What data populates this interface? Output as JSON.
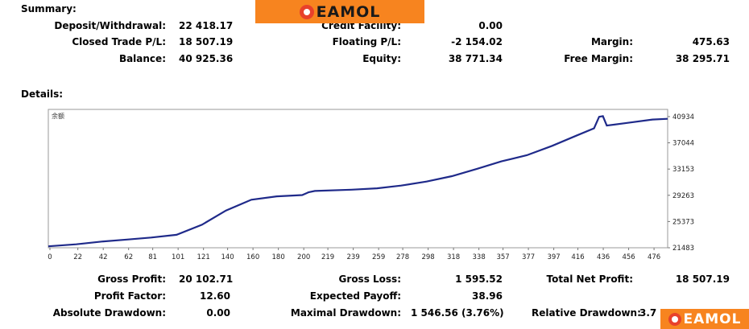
{
  "banner": {
    "brand": "EAMOL"
  },
  "corner_badge": {
    "brand": "EAMOL"
  },
  "summary": {
    "heading": "Summary:",
    "deposit_label": "Deposit/Withdrawal:",
    "deposit_value": "22 418.17",
    "credit_label": "Credit Facility:",
    "credit_value": "0.00",
    "closed_pl_label": "Closed Trade P/L:",
    "closed_pl_value": "18 507.19",
    "floating_pl_label": "Floating P/L:",
    "floating_pl_value": "-2 154.02",
    "margin_label": "Margin:",
    "margin_value": "475.63",
    "balance_label": "Balance:",
    "balance_value": "40 925.36",
    "equity_label": "Equity:",
    "equity_value": "38 771.34",
    "free_margin_label": "Free Margin:",
    "free_margin_value": "38 295.71"
  },
  "details": {
    "heading": "Details:"
  },
  "stats": {
    "gross_profit_label": "Gross Profit:",
    "gross_profit_value": "20 102.71",
    "gross_loss_label": "Gross Loss:",
    "gross_loss_value": "1 595.52",
    "net_profit_label": "Total Net Profit:",
    "net_profit_value": "18 507.19",
    "profit_factor_label": "Profit Factor:",
    "profit_factor_value": "12.60",
    "expected_payoff_label": "Expected Payoff:",
    "expected_payoff_value": "38.96",
    "abs_drawdown_label": "Absolute Drawdown:",
    "abs_drawdown_value": "0.00",
    "max_drawdown_label": "Maximal Drawdown:",
    "max_drawdown_value": "1 546.56 (3.76%)",
    "rel_drawdown_label": "Relative Drawdown:",
    "rel_drawdown_value": "3.7"
  },
  "colors": {
    "line": "#1f2a8a",
    "banner": "#f7841f",
    "logo": "#e8412b"
  },
  "chart_data": {
    "type": "line",
    "title": "",
    "legend_label": "余额",
    "xlabel": "",
    "ylabel": "",
    "xlim": [
      0,
      488
    ],
    "ylim": [
      21483,
      42000
    ],
    "x_ticks": [
      0,
      22,
      42,
      62,
      81,
      101,
      121,
      140,
      160,
      180,
      200,
      219,
      239,
      259,
      278,
      298,
      318,
      338,
      357,
      377,
      397,
      416,
      436,
      456,
      476
    ],
    "y_ticks": [
      21483,
      25373,
      29263,
      33153,
      37044,
      40934
    ],
    "grid": false,
    "series": [
      {
        "x": [
          0,
          22,
          42,
          62,
          81,
          101,
          121,
          140,
          160,
          180,
          200,
          205,
          210,
          239,
          259,
          278,
          298,
          318,
          338,
          357,
          377,
          397,
          416,
          430,
          434,
          437,
          440,
          456,
          476,
          488
        ],
        "y": [
          21700,
          22000,
          22400,
          22700,
          23000,
          23400,
          24900,
          27000,
          28600,
          29100,
          29300,
          29700,
          29900,
          30100,
          30300,
          30700,
          31300,
          32100,
          33200,
          34300,
          35200,
          36600,
          38100,
          39200,
          40900,
          41000,
          39600,
          40000,
          40500,
          40600
        ]
      }
    ]
  }
}
